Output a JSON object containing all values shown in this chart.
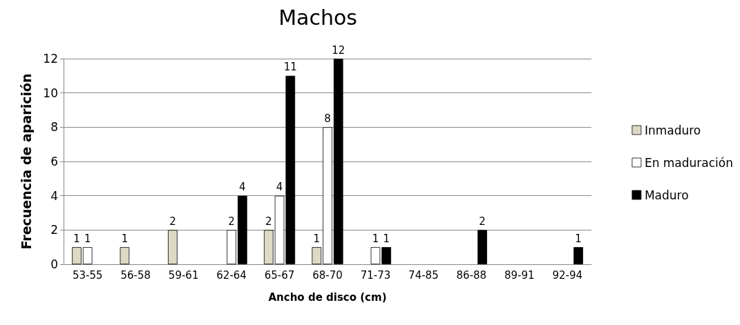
{
  "chart_data": {
    "type": "bar",
    "title": "Machos",
    "xlabel": "Ancho de disco (cm)",
    "ylabel": "Frecuencia de aparición",
    "categories": [
      "53-55",
      "56-58",
      "59-61",
      "62-64",
      "65-67",
      "68-70",
      "71-73",
      "74-85",
      "86-88",
      "89-91",
      "92-94"
    ],
    "series": [
      {
        "name": "Inmaduro",
        "color": "#ddd9c3",
        "values": [
          1,
          1,
          2,
          null,
          2,
          1,
          null,
          null,
          null,
          null,
          null
        ]
      },
      {
        "name": "En maduración",
        "color": "#ffffff",
        "values": [
          1,
          null,
          null,
          2,
          4,
          8,
          1,
          null,
          null,
          null,
          null
        ]
      },
      {
        "name": "Maduro",
        "color": "#000000",
        "values": [
          null,
          null,
          null,
          4,
          11,
          12,
          1,
          null,
          2,
          null,
          1
        ]
      }
    ],
    "ylim": [
      0,
      12
    ],
    "yticks": [
      0,
      2,
      4,
      6,
      8,
      10,
      12
    ],
    "grid": "y",
    "legend": "right",
    "data_labels": true
  }
}
